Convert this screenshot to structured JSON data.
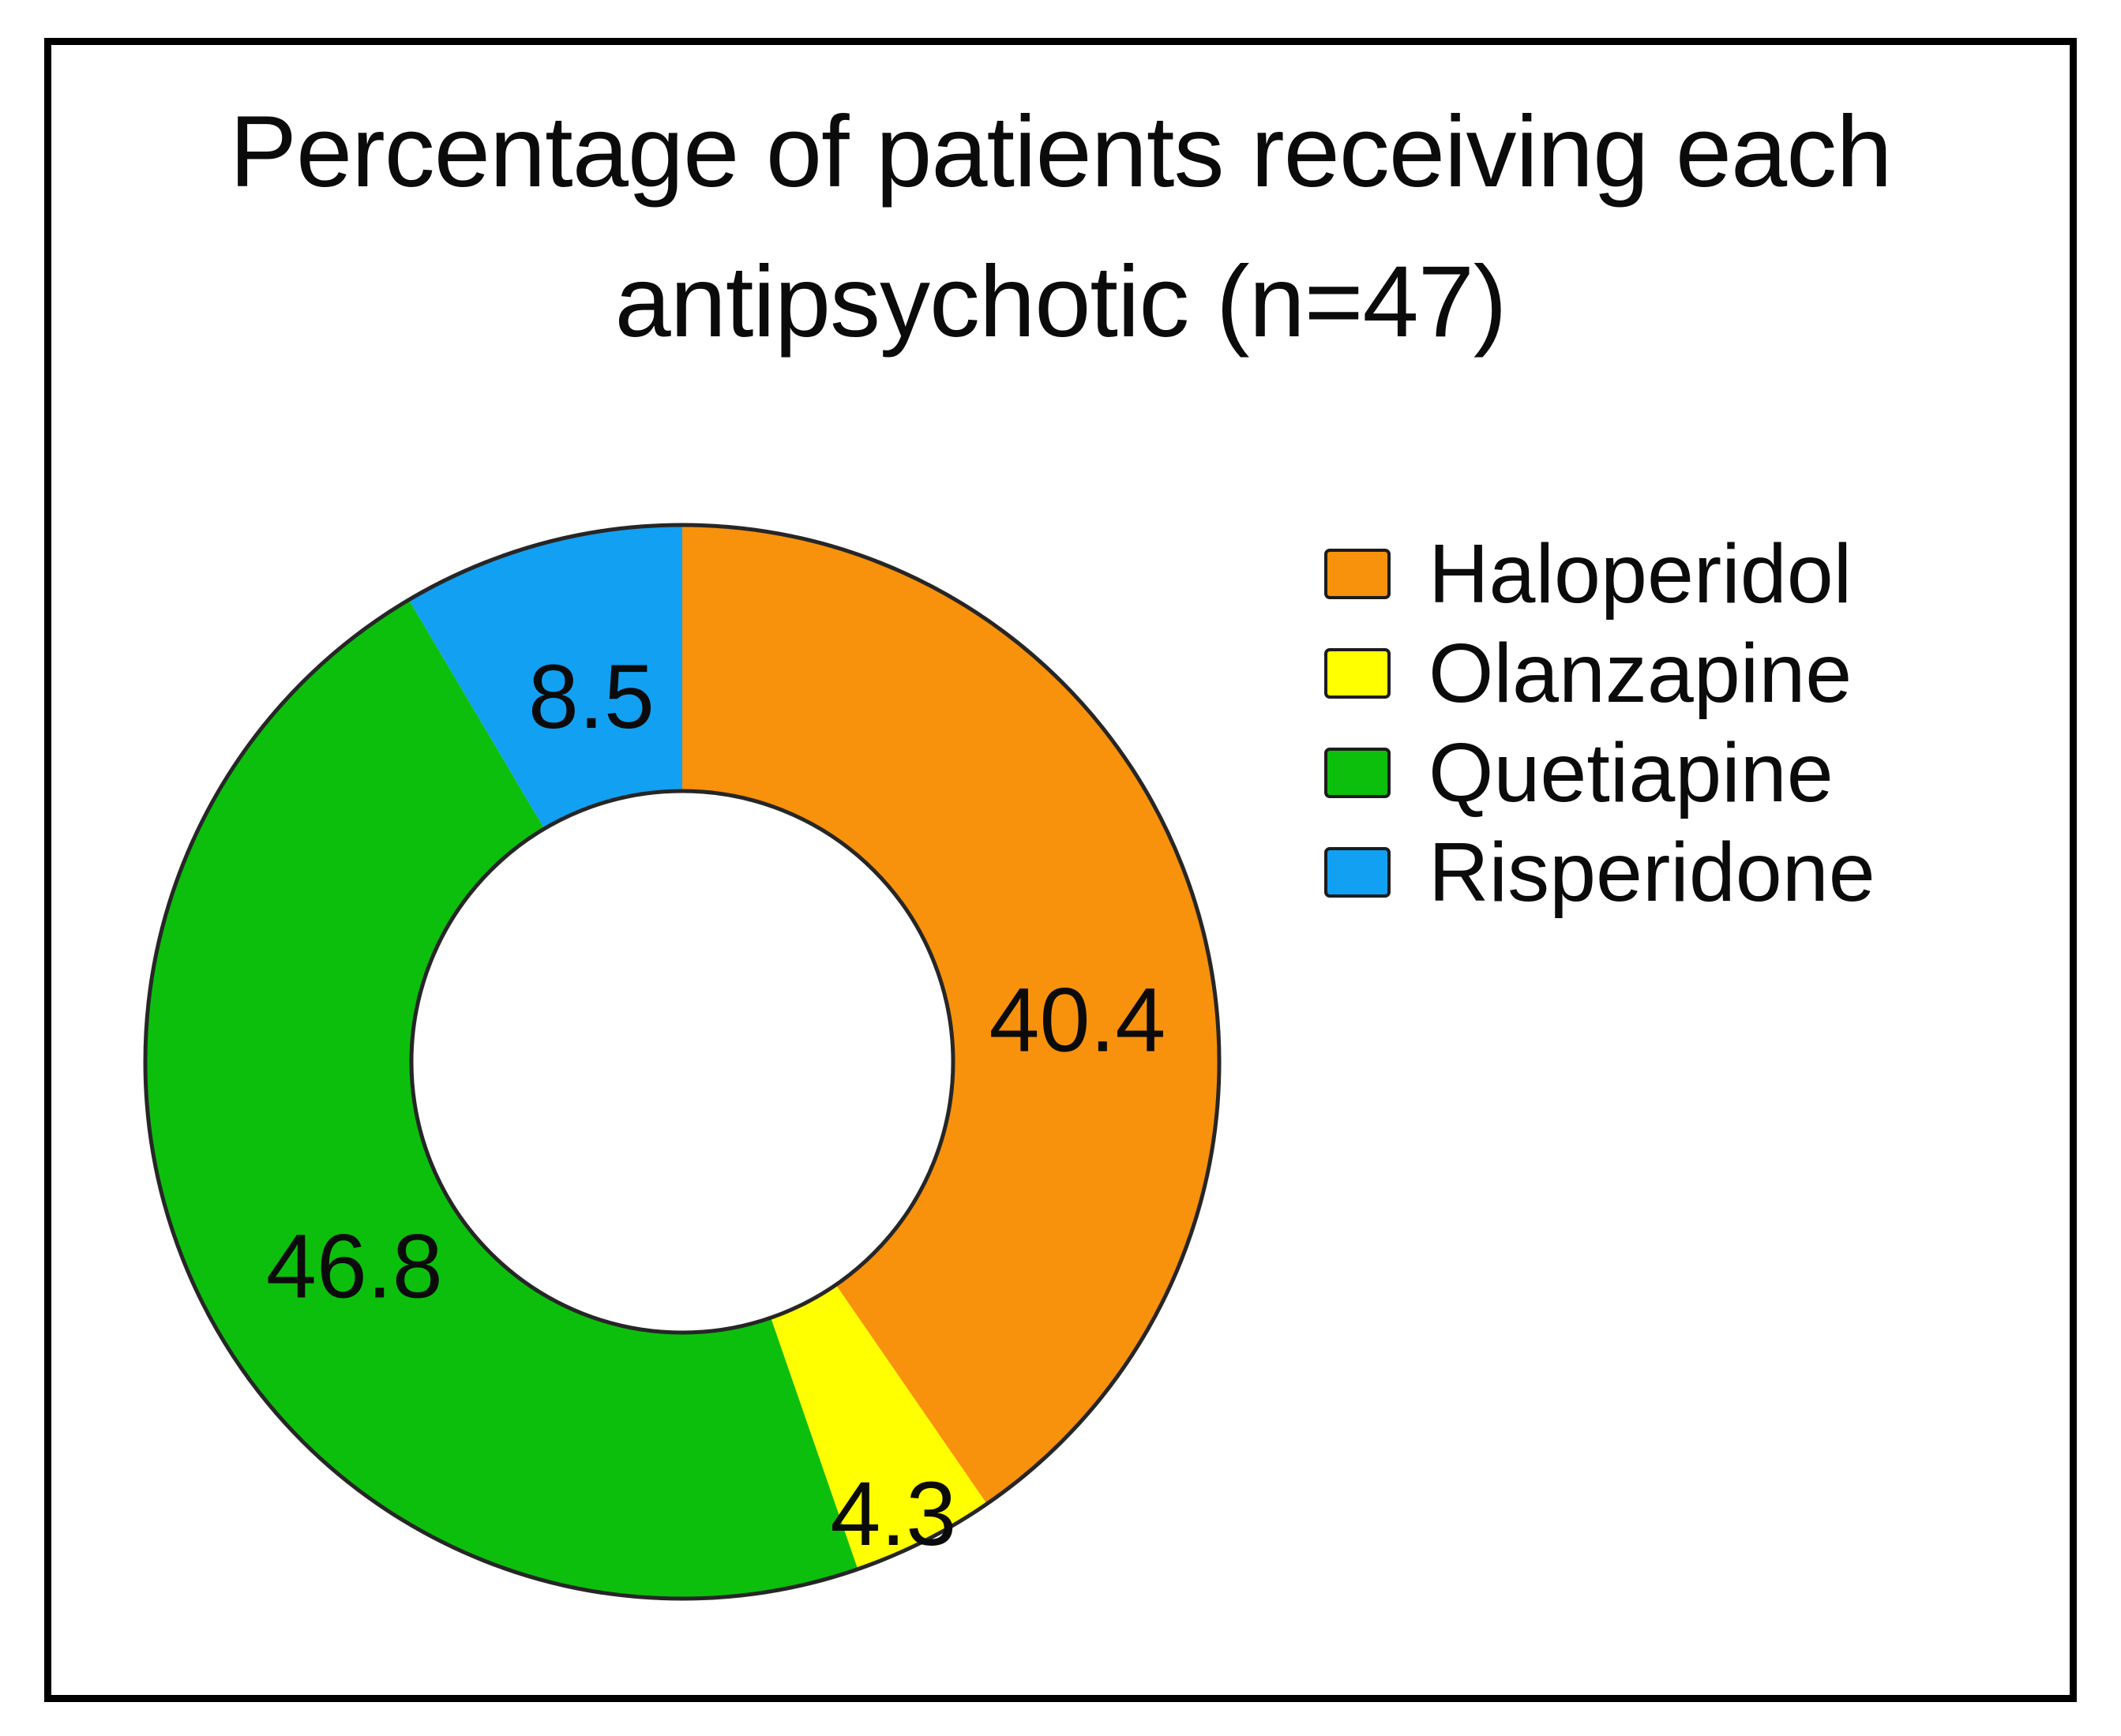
{
  "title": {
    "line1": "Percentage of patients receiving each",
    "line2": "antipsychotic (n=47)"
  },
  "chart_data": {
    "type": "pie",
    "subtype": "donut",
    "title": "Percentage of patients receiving each antipsychotic (n=47)",
    "sample_size_label": "n=47",
    "categories": [
      "Haloperidol",
      "Olanzapine",
      "Quetiapine",
      "Risperidone"
    ],
    "values": [
      40.4,
      4.3,
      46.8,
      8.5
    ],
    "value_labels": [
      "40.4",
      "4.3",
      "46.8",
      "8.5"
    ],
    "colors": [
      "#F8910B",
      "#FFFF00",
      "#0DBF0D",
      "#12A0F3"
    ],
    "unit": "percent of patients",
    "total": 100,
    "start_angle_deg": 0,
    "clockwise": true,
    "donut_hole_ratio": 0.505,
    "outline_color": "#262626",
    "legend_position": "right",
    "label_angle_deg": [
      84,
      155,
      238,
      346
    ],
    "label_radius_ratio": [
      0.74,
      0.93,
      0.72,
      0.7
    ]
  },
  "legend": {
    "items": [
      {
        "label": "Haloperidol",
        "color": "#F8910B"
      },
      {
        "label": "Olanzapine",
        "color": "#FFFF00"
      },
      {
        "label": "Quetiapine",
        "color": "#0DBF0D"
      },
      {
        "label": "Risperidone",
        "color": "#12A0F3"
      }
    ]
  }
}
